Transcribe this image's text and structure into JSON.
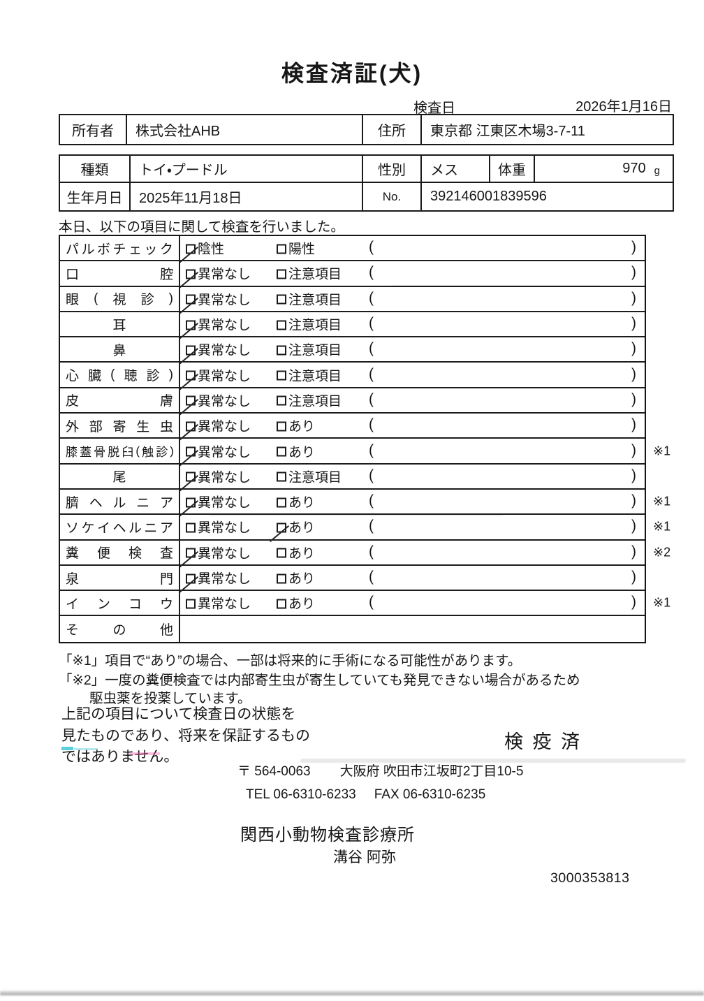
{
  "page": {
    "title": "検査済証(犬)",
    "inspection_date_label": "検査日",
    "inspection_date": "2026年1月16日"
  },
  "owner": {
    "owner_label": "所有者",
    "owner_value": "株式会社AHB",
    "address_label": "住所",
    "address_value": "東京都 江東区木場3-7-11"
  },
  "animal": {
    "breed_label": "種類",
    "breed_value": "トイ・プードル",
    "sex_label": "性別",
    "sex_value": "メス",
    "weight_label": "体重",
    "weight_value": "970",
    "weight_unit": "g",
    "birth_label": "生年月日",
    "birth_value": "2025年11月18日",
    "no_label": "No.",
    "no_value": "392146001839596"
  },
  "intro": "本日、以下の項目に関して検査を行いました。",
  "exam_table": {
    "rows": [
      {
        "label": "パルボチェック",
        "opt1": "陰性",
        "opt2": "陽性",
        "checked": "opt1",
        "note": "",
        "parens": true
      },
      {
        "label": "口腔",
        "opt1": "異常なし",
        "opt2": "注意項目",
        "checked": "opt1",
        "note": "",
        "parens": true
      },
      {
        "label": "眼(視診)",
        "opt1": "異常なし",
        "opt2": "注意項目",
        "checked": "opt1",
        "note": "",
        "parens": true
      },
      {
        "label": "耳",
        "opt1": "異常なし",
        "opt2": "注意項目",
        "checked": "opt1",
        "note": "",
        "parens": true
      },
      {
        "label": "鼻",
        "opt1": "異常なし",
        "opt2": "注意項目",
        "checked": "opt1",
        "note": "",
        "parens": true
      },
      {
        "label": "心臓(聴診)",
        "opt1": "異常なし",
        "opt2": "注意項目",
        "checked": "opt1",
        "note": "",
        "parens": true
      },
      {
        "label": "皮膚",
        "opt1": "異常なし",
        "opt2": "注意項目",
        "checked": "opt1",
        "note": "",
        "parens": true
      },
      {
        "label": "外部寄生虫",
        "opt1": "異常なし",
        "opt2": "あり",
        "checked": "opt1",
        "note": "",
        "parens": true
      },
      {
        "label": "膝蓋骨脱臼(触診)",
        "opt1": "異常なし",
        "opt2": "あり",
        "checked": "opt1",
        "note": "※1",
        "parens": true
      },
      {
        "label": "尾",
        "opt1": "異常なし",
        "opt2": "注意項目",
        "checked": "opt1",
        "note": "",
        "parens": true
      },
      {
        "label": "臍ヘルニア",
        "opt1": "異常なし",
        "opt2": "あり",
        "checked": "opt1",
        "note": "※1",
        "parens": true
      },
      {
        "label": "ソケイヘルニア",
        "opt1": "異常なし",
        "opt2": "あり",
        "checked": "opt2",
        "note": "※1",
        "parens": true
      },
      {
        "label": "糞便検査",
        "opt1": "異常なし",
        "opt2": "あり",
        "checked": "opt1",
        "note": "※2",
        "parens": true
      },
      {
        "label": "泉門",
        "opt1": "異常なし",
        "opt2": "あり",
        "checked": "opt1",
        "note": "",
        "parens": true
      },
      {
        "label": "インコウ",
        "opt1": "異常なし",
        "opt2": "あり",
        "checked": null,
        "note": "※1",
        "parens": true
      },
      {
        "label": "その他",
        "opt1": null,
        "opt2": null,
        "checked": null,
        "note": "",
        "parens": false
      }
    ]
  },
  "footnotes": {
    "note1": "「※1」項目で“あり”の場合、一部は将来的に手術になる可能性があります。",
    "note2": "「※2」一度の糞便検査では内部寄生虫が寄生していても発見できない場合があるため",
    "note2b": "駆虫薬を投薬しています。"
  },
  "disclaimer": {
    "line1": "上記の項目について検査日の状態を",
    "line2": "見たものであり、将来を保証するもの",
    "line3": "ではありません。"
  },
  "stamp": "検 疫 済",
  "clinic": {
    "postal": "〒 564-0063",
    "address": "大阪府 吹田市江坂町2丁目10-5",
    "tel": "TEL 06-6310-6233",
    "fax": "FAX 06-6310-6235",
    "name": "関西小動物検査診療所",
    "vet": "溝谷 阿弥",
    "serial": "3000353813"
  }
}
